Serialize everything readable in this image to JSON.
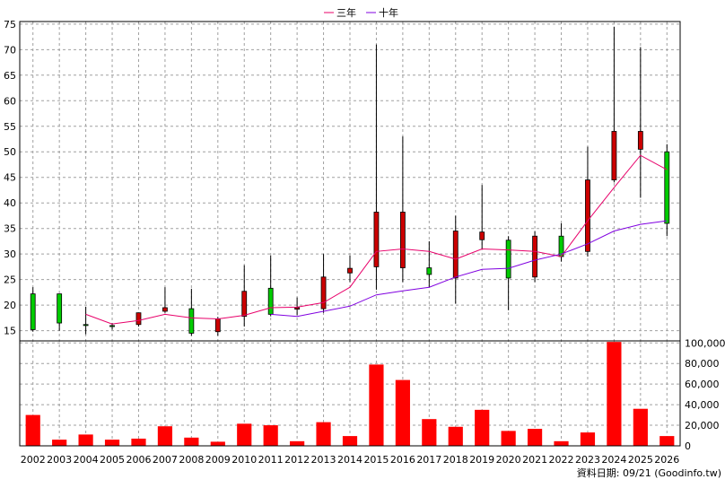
{
  "chart_data": [
    {
      "type": "candlestick",
      "legend": {
        "placement": "top-center",
        "entries": [
          {
            "label": "三年",
            "color": "#e8006a"
          },
          {
            "label": "十年",
            "color": "#8000e0"
          }
        ]
      },
      "x": [
        "2002",
        "2003",
        "2004",
        "2005",
        "2006",
        "2007",
        "2008",
        "2009",
        "2010",
        "2011",
        "2012",
        "2013",
        "2014",
        "2015",
        "2016",
        "2017",
        "2018",
        "2019",
        "2020",
        "2021",
        "2022",
        "2023",
        "2024",
        "2025",
        "2026"
      ],
      "ylim": [
        13,
        75.5
      ],
      "yticks": [
        15,
        20,
        25,
        30,
        35,
        40,
        45,
        50,
        55,
        60,
        65,
        70,
        75
      ],
      "y_axis_position": "left",
      "grid": true,
      "candles": [
        {
          "open": 15.2,
          "high": 23.5,
          "low": 14.8,
          "close": 22.2
        },
        {
          "open": 16.5,
          "high": 22.2,
          "low": 15.0,
          "close": 22.2
        },
        {
          "open": 16.0,
          "high": 19.7,
          "low": 14.3,
          "close": 16.2
        },
        {
          "open": 15.8,
          "high": 16.5,
          "low": 15.2,
          "close": 16.0
        },
        {
          "open": 18.5,
          "high": 18.5,
          "low": 15.8,
          "close": 16.2
        },
        {
          "open": 19.5,
          "high": 23.5,
          "low": 18.5,
          "close": 18.8
        },
        {
          "open": 14.5,
          "high": 23.2,
          "low": 14.0,
          "close": 19.3
        },
        {
          "open": 17.3,
          "high": 17.7,
          "low": 14.0,
          "close": 14.8
        },
        {
          "open": 22.7,
          "high": 27.8,
          "low": 15.8,
          "close": 17.8
        },
        {
          "open": 18.2,
          "high": 29.7,
          "low": 17.8,
          "close": 23.3
        },
        {
          "open": 19.5,
          "high": 21.5,
          "low": 18.0,
          "close": 19.2
        },
        {
          "open": 25.5,
          "high": 30.0,
          "low": 18.5,
          "close": 19.3
        },
        {
          "open": 27.2,
          "high": 29.7,
          "low": 24.5,
          "close": 26.3
        },
        {
          "open": 38.2,
          "high": 71.0,
          "low": 23.0,
          "close": 27.5
        },
        {
          "open": 38.2,
          "high": 53.0,
          "low": 24.5,
          "close": 27.3
        },
        {
          "open": 26.0,
          "high": 32.5,
          "low": 23.5,
          "close": 27.3
        },
        {
          "open": 34.5,
          "high": 37.5,
          "low": 20.3,
          "close": 25.3
        },
        {
          "open": 34.3,
          "high": 43.5,
          "low": 31.0,
          "close": 32.8
        },
        {
          "open": 25.3,
          "high": 33.5,
          "low": 19.0,
          "close": 32.7
        },
        {
          "open": 33.5,
          "high": 34.5,
          "low": 24.5,
          "close": 25.5
        },
        {
          "open": 29.5,
          "high": 36.0,
          "low": 28.5,
          "close": 33.5
        },
        {
          "open": 44.5,
          "high": 51.0,
          "low": 29.5,
          "close": 30.5
        },
        {
          "open": 54.0,
          "high": 74.5,
          "low": 44.0,
          "close": 44.5
        },
        {
          "open": 54.0,
          "high": 70.5,
          "low": 41.0,
          "close": 50.5
        },
        {
          "open": 36.0,
          "high": 51.5,
          "low": 33.5,
          "close": 50.0
        }
      ],
      "candle_colors": {
        "up": "#00cc00",
        "down": "#cc0000",
        "outline": "#000000"
      },
      "series": [
        {
          "name": "三年",
          "color": "#e8006a",
          "values": [
            null,
            null,
            18.2,
            16.3,
            17.0,
            18.2,
            17.5,
            17.3,
            18.0,
            19.5,
            19.6,
            20.5,
            23.5,
            30.5,
            31.0,
            30.5,
            29.0,
            31.0,
            30.8,
            30.5,
            29.5,
            36.5,
            43.0,
            49.3,
            46.5
          ]
        },
        {
          "name": "十年",
          "color": "#8000e0",
          "values": [
            null,
            null,
            null,
            null,
            null,
            null,
            null,
            null,
            null,
            18.2,
            17.8,
            18.8,
            19.8,
            22.0,
            22.8,
            23.5,
            25.5,
            27.0,
            27.2,
            28.8,
            30.0,
            32.0,
            34.5,
            35.8,
            36.5
          ]
        }
      ]
    },
    {
      "type": "bar",
      "x": [
        "2002",
        "2003",
        "2004",
        "2005",
        "2006",
        "2007",
        "2008",
        "2009",
        "2010",
        "2011",
        "2012",
        "2013",
        "2014",
        "2015",
        "2016",
        "2017",
        "2018",
        "2019",
        "2020",
        "2021",
        "2022",
        "2023",
        "2024",
        "2025",
        "2026"
      ],
      "values": [
        30000,
        6000,
        11000,
        6000,
        7000,
        19000,
        8000,
        4000,
        21500,
        20000,
        4500,
        23000,
        9500,
        79000,
        64000,
        26000,
        18500,
        35000,
        14500,
        16500,
        4500,
        13000,
        101000,
        36000,
        9500
      ],
      "ylim": [
        0,
        102000
      ],
      "yticks": [
        0,
        20000,
        40000,
        60000,
        80000,
        100000
      ],
      "ytick_labels": [
        "0",
        "20,000",
        "40,000",
        "60,000",
        "80,000",
        "100,000"
      ],
      "y_axis_position": "right",
      "bar_color": "#ff0000",
      "grid": true
    }
  ],
  "footer": {
    "source_note": "資料日期: 09/21 (Goodinfo.tw)"
  }
}
